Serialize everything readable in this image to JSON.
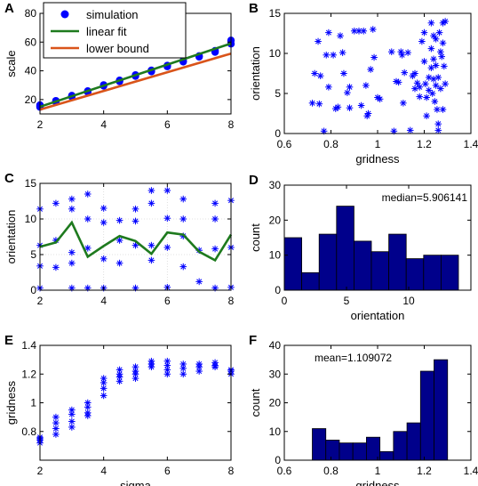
{
  "colors": {
    "simulation": "#0000ff",
    "linear_fit": "#1e7a1e",
    "lower_bound": "#d9541a",
    "bar_fill": "#00008b"
  },
  "chart_data": [
    {
      "id": "A",
      "panel_label": "A",
      "type": "line",
      "xlabel": "",
      "ylabel": "scale",
      "xlim": [
        2,
        8
      ],
      "ylim": [
        10,
        80
      ],
      "xticks": [
        2,
        4,
        6,
        8
      ],
      "yticks": [
        20,
        40,
        60,
        80
      ],
      "legend": {
        "position": "top-left",
        "entries": [
          {
            "label": "simulation",
            "marker": "dot",
            "color": "#0000ff"
          },
          {
            "label": "linear fit",
            "marker": "line",
            "color": "#1e7a1e"
          },
          {
            "label": "lower bound",
            "marker": "line",
            "color": "#d9541a"
          }
        ]
      },
      "series": [
        {
          "name": "simulation",
          "kind": "dots",
          "color": "#0000ff",
          "x": [
            2,
            2,
            2,
            2.5,
            2.5,
            3,
            3,
            3.5,
            3.5,
            4,
            4,
            4.5,
            4.5,
            5,
            5,
            5.5,
            5.5,
            6,
            6,
            6.5,
            6.5,
            7,
            7,
            7.5,
            7.5,
            8,
            8
          ],
          "y": [
            14.8,
            15.5,
            16.2,
            18.3,
            19.2,
            22.0,
            22.8,
            25.2,
            26.0,
            29.5,
            30.2,
            32.6,
            33.4,
            36.3,
            37.1,
            39.5,
            40.4,
            43.0,
            43.7,
            46.3,
            47.0,
            49.7,
            50.4,
            53.0,
            54.0,
            58.8,
            61.2
          ]
        },
        {
          "name": "linear fit",
          "kind": "line",
          "color": "#1e7a1e",
          "x": [
            2,
            8
          ],
          "y": [
            15,
            59
          ]
        },
        {
          "name": "lower bound",
          "kind": "line",
          "color": "#d9541a",
          "x": [
            2,
            8
          ],
          "y": [
            13,
            52
          ]
        }
      ]
    },
    {
      "id": "B",
      "panel_label": "B",
      "type": "scatter",
      "xlabel": "gridness",
      "ylabel": "orientation",
      "xlim": [
        0.6,
        1.4
      ],
      "ylim": [
        0,
        15
      ],
      "xticks": [
        0.6,
        0.8,
        1,
        1.2,
        1.4
      ],
      "xticklabels": [
        "0.6",
        "0.8",
        "1",
        "1.2",
        "1.4"
      ],
      "yticks": [
        0,
        5,
        10,
        15
      ],
      "series": [
        {
          "name": "",
          "marker": "asterisk",
          "color": "#0000ff",
          "points": [
            [
              0.72,
              3.8
            ],
            [
              0.73,
              7.5
            ],
            [
              0.745,
              11.5
            ],
            [
              0.75,
              3.7
            ],
            [
              0.755,
              7.2
            ],
            [
              0.77,
              0.3
            ],
            [
              0.78,
              9.8
            ],
            [
              0.79,
              12.6
            ],
            [
              0.79,
              5.8
            ],
            [
              0.81,
              9.8
            ],
            [
              0.82,
              3.1
            ],
            [
              0.83,
              3.3
            ],
            [
              0.84,
              12.2
            ],
            [
              0.85,
              10.1
            ],
            [
              0.855,
              7.5
            ],
            [
              0.87,
              5.1
            ],
            [
              0.88,
              5.8
            ],
            [
              0.88,
              3.2
            ],
            [
              0.9,
              12.8
            ],
            [
              0.92,
              12.8
            ],
            [
              0.93,
              3.5
            ],
            [
              0.94,
              12.8
            ],
            [
              0.95,
              6.0
            ],
            [
              0.955,
              2.2
            ],
            [
              0.96,
              2.5
            ],
            [
              0.97,
              8.0
            ],
            [
              0.98,
              13.0
            ],
            [
              0.985,
              9.5
            ],
            [
              1.0,
              4.5
            ],
            [
              1.01,
              4.3
            ],
            [
              1.06,
              10.2
            ],
            [
              1.07,
              0.3
            ],
            [
              1.08,
              6.5
            ],
            [
              1.09,
              6.4
            ],
            [
              1.1,
              10.2
            ],
            [
              1.105,
              9.8
            ],
            [
              1.11,
              3.8
            ],
            [
              1.115,
              7.6
            ],
            [
              1.13,
              10.1
            ],
            [
              1.14,
              0.4
            ],
            [
              1.15,
              7.2
            ],
            [
              1.16,
              7.5
            ],
            [
              1.16,
              5.6
            ],
            [
              1.17,
              6.3
            ],
            [
              1.18,
              4.6
            ],
            [
              1.18,
              5.8
            ],
            [
              1.19,
              11.5
            ],
            [
              1.2,
              12.6
            ],
            [
              1.2,
              9.0
            ],
            [
              1.205,
              6.2
            ],
            [
              1.21,
              2.2
            ],
            [
              1.21,
              4.5
            ],
            [
              1.22,
              5.4
            ],
            [
              1.22,
              7.0
            ],
            [
              1.23,
              13.8
            ],
            [
              1.23,
              10.6
            ],
            [
              1.23,
              8.2
            ],
            [
              1.235,
              5.0
            ],
            [
              1.24,
              12.2
            ],
            [
              1.24,
              9.3
            ],
            [
              1.24,
              6.8
            ],
            [
              1.245,
              4.0
            ],
            [
              1.25,
              11.8
            ],
            [
              1.25,
              8.5
            ],
            [
              1.25,
              6.0
            ],
            [
              1.255,
              3.0
            ],
            [
              1.26,
              0.4
            ],
            [
              1.26,
              1.2
            ],
            [
              1.26,
              7.0
            ],
            [
              1.265,
              12.6
            ],
            [
              1.27,
              10.2
            ],
            [
              1.27,
              5.6
            ],
            [
              1.275,
              9.6
            ],
            [
              1.28,
              13.8
            ],
            [
              1.28,
              11.3
            ],
            [
              1.28,
              3.0
            ],
            [
              1.285,
              8.4
            ],
            [
              1.29,
              14.0
            ],
            [
              1.29,
              6.2
            ]
          ]
        }
      ]
    },
    {
      "id": "C",
      "panel_label": "C",
      "type": "scatter",
      "xlabel": "",
      "ylabel": "orientation",
      "xlim": [
        2,
        8
      ],
      "ylim": [
        0,
        15
      ],
      "grid": true,
      "xticks": [
        2,
        4,
        6,
        8
      ],
      "yticks": [
        0,
        5,
        10,
        15
      ],
      "series": [
        {
          "name": "",
          "kind": "points",
          "marker": "asterisk",
          "color": "#0000ff",
          "points": [
            [
              2,
              11.4
            ],
            [
              2,
              6.3
            ],
            [
              2,
              3.4
            ],
            [
              2,
              0.3
            ],
            [
              2.5,
              12.2
            ],
            [
              2.5,
              7.0
            ],
            [
              2.5,
              3.2
            ],
            [
              3,
              12.8
            ],
            [
              3,
              11.4
            ],
            [
              3,
              5.3
            ],
            [
              3,
              3.8
            ],
            [
              3,
              0.3
            ],
            [
              3.5,
              13.5
            ],
            [
              3.5,
              10.0
            ],
            [
              3.5,
              5.9
            ],
            [
              3.5,
              0.3
            ],
            [
              4,
              11.5
            ],
            [
              4,
              9.5
            ],
            [
              4,
              4.4
            ],
            [
              4,
              0.3
            ],
            [
              4.5,
              9.8
            ],
            [
              4.5,
              7.0
            ],
            [
              4.5,
              3.8
            ],
            [
              5,
              11.4
            ],
            [
              5,
              9.7
            ],
            [
              5,
              6.3
            ],
            [
              5,
              0.3
            ],
            [
              5.5,
              14.0
            ],
            [
              5.5,
              12.2
            ],
            [
              5.5,
              6.3
            ],
            [
              5.5,
              4.2
            ],
            [
              6,
              14.0
            ],
            [
              6,
              10.1
            ],
            [
              6,
              6.0
            ],
            [
              6,
              0.4
            ],
            [
              6.5,
              12.8
            ],
            [
              6.5,
              10.0
            ],
            [
              6.5,
              7.6
            ],
            [
              6.5,
              3.3
            ],
            [
              7,
              5.6
            ],
            [
              7,
              1.2
            ],
            [
              7.5,
              12.2
            ],
            [
              7.5,
              10.0
            ],
            [
              7.5,
              5.8
            ],
            [
              7.5,
              0.3
            ],
            [
              8,
              12.6
            ],
            [
              8,
              6.0
            ],
            [
              8,
              0.4
            ]
          ]
        },
        {
          "name": "",
          "kind": "line",
          "color": "#1e7a1e",
          "x": [
            2,
            2.5,
            3,
            3.5,
            4,
            4.5,
            5,
            5.5,
            6,
            6.5,
            7,
            7.5,
            8
          ],
          "y": [
            6.1,
            6.7,
            9.5,
            4.7,
            6.2,
            7.6,
            6.9,
            5.1,
            8.1,
            7.8,
            5.4,
            4.2,
            7.8
          ]
        }
      ]
    },
    {
      "id": "D",
      "panel_label": "D",
      "type": "bar",
      "xlabel": "orientation",
      "ylabel": "count",
      "xlim": [
        0,
        15
      ],
      "ylim": [
        0,
        30
      ],
      "xticks": [
        0,
        5,
        10
      ],
      "yticks": [
        0,
        10,
        20,
        30
      ],
      "annotation": "median=5.906141",
      "bin_edges": [
        0,
        1.4,
        2.8,
        4.2,
        5.6,
        7.0,
        8.4,
        9.8,
        11.2,
        12.6,
        14.0
      ],
      "values": [
        15,
        5,
        16,
        24,
        14,
        11,
        16,
        9,
        10,
        10
      ]
    },
    {
      "id": "E",
      "panel_label": "E",
      "type": "scatter",
      "xlabel": "sigma",
      "ylabel": "gridness",
      "xlim": [
        2,
        8
      ],
      "ylim": [
        0.6,
        1.4
      ],
      "xticks": [
        2,
        4,
        6,
        8
      ],
      "yticks": [
        0.8,
        1,
        1.2,
        1.4
      ],
      "yticklabels": [
        "0.8",
        "1",
        "1.2",
        "1.4"
      ],
      "series": [
        {
          "name": "",
          "marker": "asterisk",
          "color": "#0000ff",
          "points": [
            [
              2,
              0.72
            ],
            [
              2,
              0.74
            ],
            [
              2,
              0.76
            ],
            [
              2,
              0.75
            ],
            [
              2.5,
              0.78
            ],
            [
              2.5,
              0.82
            ],
            [
              2.5,
              0.86
            ],
            [
              2.5,
              0.9
            ],
            [
              3,
              0.83
            ],
            [
              3,
              0.87
            ],
            [
              3,
              0.92
            ],
            [
              3,
              0.95
            ],
            [
              3.5,
              0.93
            ],
            [
              3.5,
              0.97
            ],
            [
              3.5,
              1.0
            ],
            [
              3.5,
              0.91
            ],
            [
              4,
              1.1
            ],
            [
              4,
              1.14
            ],
            [
              4,
              1.17
            ],
            [
              4,
              1.05
            ],
            [
              4.5,
              1.15
            ],
            [
              4.5,
              1.18
            ],
            [
              4.5,
              1.2
            ],
            [
              4.5,
              1.23
            ],
            [
              5,
              1.2
            ],
            [
              5,
              1.22
            ],
            [
              5,
              1.25
            ],
            [
              5,
              1.17
            ],
            [
              5.5,
              1.25
            ],
            [
              5.5,
              1.27
            ],
            [
              5.5,
              1.29
            ],
            [
              6,
              1.2
            ],
            [
              6,
              1.23
            ],
            [
              6,
              1.26
            ],
            [
              6,
              1.29
            ],
            [
              6.5,
              1.2
            ],
            [
              6.5,
              1.24
            ],
            [
              6.5,
              1.27
            ],
            [
              7,
              1.22
            ],
            [
              7,
              1.25
            ],
            [
              7,
              1.27
            ],
            [
              7.5,
              1.25
            ],
            [
              7.5,
              1.28
            ],
            [
              7.5,
              1.26
            ],
            [
              8,
              1.2
            ],
            [
              8,
              1.22
            ],
            [
              8,
              1.23
            ]
          ]
        }
      ]
    },
    {
      "id": "F",
      "panel_label": "F",
      "type": "bar",
      "xlabel": "gridness",
      "ylabel": "count",
      "xlim": [
        0.6,
        1.4
      ],
      "ylim": [
        0,
        40
      ],
      "xticks": [
        0.6,
        0.8,
        1,
        1.2,
        1.4
      ],
      "xticklabels": [
        "0.6",
        "0.8",
        "1",
        "1.2",
        "1.4"
      ],
      "yticks": [
        0,
        10,
        20,
        30,
        40
      ],
      "annotation": "mean=1.109072",
      "bin_edges": [
        0.72,
        0.778,
        0.836,
        0.894,
        0.952,
        1.01,
        1.068,
        1.126,
        1.184,
        1.242,
        1.3
      ],
      "values": [
        11,
        7,
        6,
        6,
        8,
        3,
        10,
        13,
        31,
        35
      ]
    }
  ]
}
